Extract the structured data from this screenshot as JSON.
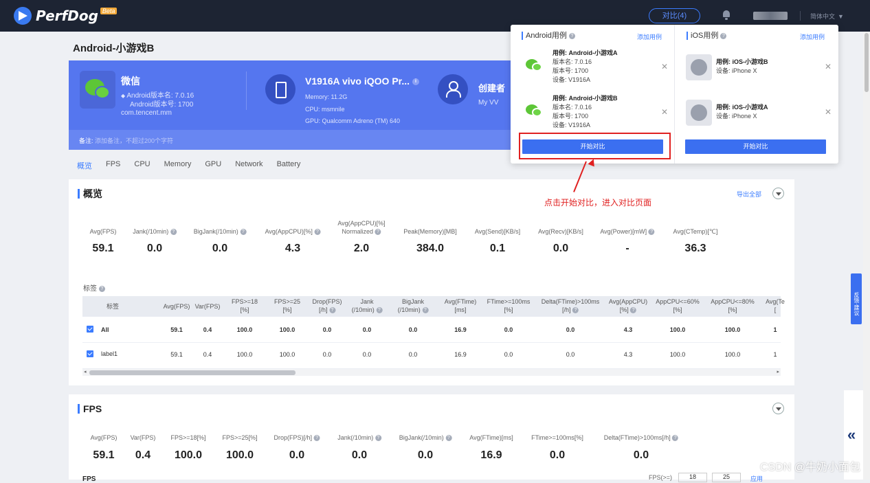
{
  "topbar": {
    "logo_text": "PerfDog",
    "beta": "Beta",
    "compare_button": "对比(4)",
    "language": "简体中文"
  },
  "device_title": "Android-小游戏B",
  "banner": {
    "app_name": "微信",
    "android_version": "Android版本名: 7.0.16",
    "android_build": "Android版本号: 1700",
    "package": "com.tencent.mm",
    "device_name": "V1916A vivo iQOO Pr...",
    "memory": "Memory: 11.2G",
    "cpu": "CPU: msmnile",
    "gpu": "GPU: Qualcomm Adreno (TM) 640",
    "creator_label": "创建者",
    "creator_name": "My VV",
    "note_label": "备注:",
    "note_placeholder": "添加备注，不超过200个字符"
  },
  "tabs": [
    "概览",
    "FPS",
    "CPU",
    "Memory",
    "GPU",
    "Network",
    "Battery"
  ],
  "overview": {
    "title": "概览",
    "export_label": "导出全部",
    "metrics": [
      {
        "label": "Avg(FPS)",
        "value": "59.1",
        "help": false
      },
      {
        "label": "Jank(/10min)",
        "value": "0.0",
        "help": true
      },
      {
        "label": "BigJank(/10min)",
        "value": "0.0",
        "help": true
      },
      {
        "label": "Avg(AppCPU)[%]",
        "value": "4.3",
        "help": true
      },
      {
        "label": "Avg(AppCPU)[%]\nNormalized",
        "value": "2.0",
        "help": true
      },
      {
        "label": "Peak(Memory)[MB]",
        "value": "384.0",
        "help": false
      },
      {
        "label": "Avg(Send)[KB/s]",
        "value": "0.1",
        "help": false
      },
      {
        "label": "Avg(Recv)[KB/s]",
        "value": "0.0",
        "help": false
      },
      {
        "label": "Avg(Power)[mW]",
        "value": "-",
        "help": true
      },
      {
        "label": "Avg(CTemp)[℃]",
        "value": "36.3",
        "help": false
      }
    ],
    "tag_section_label": "标签",
    "table": {
      "headers": [
        {
          "text": "标签",
          "help": false
        },
        {
          "text": "Avg(FPS)",
          "help": false
        },
        {
          "text": "Var(FPS)",
          "help": false
        },
        {
          "text": "FPS>=18\n[%]",
          "help": false
        },
        {
          "text": "FPS>=25\n[%]",
          "help": false
        },
        {
          "text": "Drop(FPS)\n[/h]",
          "help": true
        },
        {
          "text": "Jank\n(/10min)",
          "help": true
        },
        {
          "text": "BigJank\n(/10min)",
          "help": true
        },
        {
          "text": "Avg(FTime)\n[ms]",
          "help": false
        },
        {
          "text": "FTime>=100ms\n[%]",
          "help": false
        },
        {
          "text": "Delta(FTime)>100ms\n[/h]",
          "help": true
        },
        {
          "text": "Avg(AppCPU)\n[%]",
          "help": true
        },
        {
          "text": "AppCPU<=60%\n[%]",
          "help": false
        },
        {
          "text": "AppCPU<=80%\n[%]",
          "help": false
        },
        {
          "text": "Avg(Te\n[",
          "help": false
        }
      ],
      "rows": [
        {
          "label": "All",
          "bold": true,
          "cells": [
            "59.1",
            "0.4",
            "100.0",
            "100.0",
            "0.0",
            "0.0",
            "0.0",
            "16.9",
            "0.0",
            "0.0",
            "4.3",
            "100.0",
            "100.0",
            "1"
          ]
        },
        {
          "label": "label1",
          "bold": false,
          "cells": [
            "59.1",
            "0.4",
            "100.0",
            "100.0",
            "0.0",
            "0.0",
            "0.0",
            "16.9",
            "0.0",
            "0.0",
            "4.3",
            "100.0",
            "100.0",
            "1"
          ]
        }
      ]
    }
  },
  "fps_section": {
    "title": "FPS",
    "metrics": [
      {
        "label": "Avg(FPS)",
        "value": "59.1",
        "help": false
      },
      {
        "label": "Var(FPS)",
        "value": "0.4",
        "help": false
      },
      {
        "label": "FPS>=18[%]",
        "value": "100.0",
        "help": false
      },
      {
        "label": "FPS>=25[%]",
        "value": "100.0",
        "help": false
      },
      {
        "label": "Drop(FPS)[/h]",
        "value": "0.0",
        "help": true
      },
      {
        "label": "Jank(/10min)",
        "value": "0.0",
        "help": true
      },
      {
        "label": "BigJank(/10min)",
        "value": "0.0",
        "help": true
      },
      {
        "label": "Avg(FTime)[ms]",
        "value": "16.9",
        "help": false
      },
      {
        "label": "FTime>=100ms[%]",
        "value": "0.0",
        "help": false
      },
      {
        "label": "Delta(FTime)>100ms[/h]",
        "value": "0.0",
        "help": true
      }
    ],
    "sub_title": "FPS",
    "fps_filter_label": "FPS(>=)",
    "fps_input_1": "18",
    "fps_input_2": "25",
    "apply_label": "应用"
  },
  "compare_popover": {
    "android_title": "Android用例",
    "ios_title": "iOS用例",
    "add_label": "添加用例",
    "android_items": [
      {
        "case": "用例: Android-小游戏A",
        "version_name": "版本名: 7.0.16",
        "version_code": "版本号: 1700",
        "device": "设备: V1916A"
      },
      {
        "case": "用例: Android-小游戏B",
        "version_name": "版本名: 7.0.16",
        "version_code": "版本号: 1700",
        "device": "设备: V1916A"
      }
    ],
    "ios_items": [
      {
        "case": "用例: iOS-小游戏B",
        "device": "设备: iPhone X"
      },
      {
        "case": "用例: iOS-小游戏A",
        "device": "设备: iPhone X"
      }
    ],
    "start_compare": "开始对比"
  },
  "annotation": "点击开始对比，进入对比页面",
  "feedback_tab": "反馈·建议",
  "watermark": "CSDN @牛奶小面包",
  "colors": {
    "accent": "#3b7cff",
    "banner": "#5576ef",
    "annotation": "#e02020",
    "topbar": "#1d2433"
  }
}
